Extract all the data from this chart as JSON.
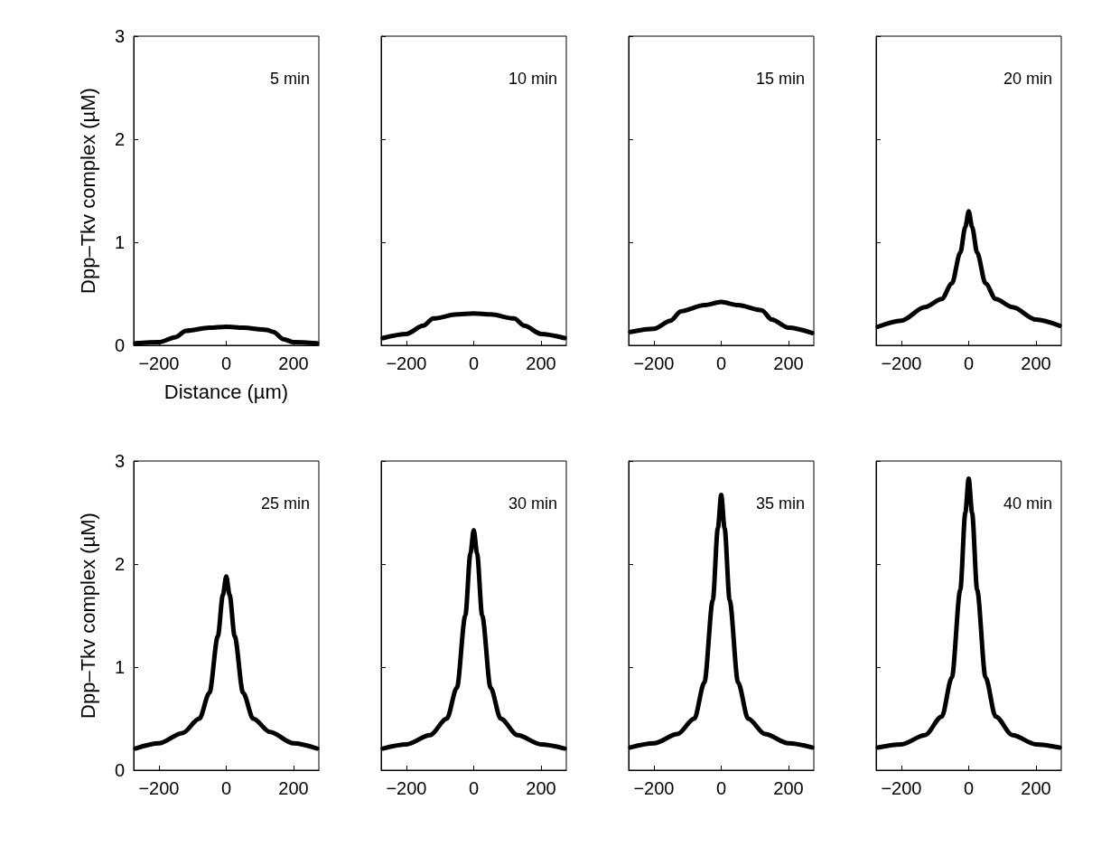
{
  "chart_data": [
    {
      "type": "line",
      "xlabel": "Distance (µm)",
      "ylabel": "Dpp–Tkv complex (µM)",
      "annotations": [
        "5 min"
      ],
      "x": [
        -270,
        -200,
        -150,
        -120,
        -50,
        0,
        50,
        120,
        140,
        170,
        200,
        270
      ],
      "series": [
        {
          "color": "#000000",
          "values": [
            0.02,
            0.03,
            0.08,
            0.14,
            0.17,
            0.18,
            0.17,
            0.15,
            0.13,
            0.06,
            0.03,
            0.02
          ]
        }
      ],
      "xlim": [
        -275,
        275
      ],
      "ylim": [
        0,
        3
      ],
      "xticks": [
        -200,
        0,
        200
      ],
      "yticks": [
        0,
        1,
        2,
        3
      ]
    },
    {
      "type": "line",
      "annotations": [
        "10 min"
      ],
      "x": [
        -270,
        -200,
        -150,
        -120,
        -50,
        0,
        50,
        120,
        150,
        200,
        270
      ],
      "series": [
        {
          "color": "#000000",
          "values": [
            0.07,
            0.11,
            0.19,
            0.26,
            0.3,
            0.31,
            0.3,
            0.26,
            0.19,
            0.11,
            0.07
          ]
        }
      ],
      "xlim": [
        -275,
        275
      ],
      "ylim": [
        0,
        3
      ],
      "xticks": [
        -200,
        0,
        200
      ],
      "yticks": [
        0,
        1,
        2,
        3
      ],
      "tick_labels": "x"
    },
    {
      "type": "line",
      "annotations": [
        "15 min"
      ],
      "x": [
        -270,
        -200,
        -150,
        -120,
        -50,
        0,
        50,
        120,
        150,
        200,
        270
      ],
      "series": [
        {
          "color": "#000000",
          "values": [
            0.13,
            0.16,
            0.24,
            0.33,
            0.39,
            0.42,
            0.39,
            0.34,
            0.25,
            0.17,
            0.12
          ]
        }
      ],
      "xlim": [
        -275,
        275
      ],
      "ylim": [
        0,
        3
      ],
      "xticks": [
        -200,
        0,
        200
      ],
      "yticks": [
        0,
        1,
        2,
        3
      ],
      "tick_labels": "x"
    },
    {
      "type": "line",
      "annotations": [
        "20 min"
      ],
      "x": [
        -270,
        -200,
        -130,
        -80,
        -50,
        -25,
        -10,
        0,
        10,
        25,
        50,
        80,
        130,
        200,
        270
      ],
      "series": [
        {
          "color": "#000000",
          "values": [
            0.18,
            0.24,
            0.37,
            0.45,
            0.6,
            0.9,
            1.15,
            1.3,
            1.15,
            0.9,
            0.6,
            0.45,
            0.37,
            0.25,
            0.19
          ]
        }
      ],
      "xlim": [
        -275,
        275
      ],
      "ylim": [
        0,
        3
      ],
      "xticks": [
        -200,
        0,
        200
      ],
      "yticks": [
        0,
        1,
        2,
        3
      ],
      "tick_labels": "x"
    },
    {
      "type": "line",
      "ylabel": "Dpp–Tkv complex (µM)",
      "annotations": [
        "25 min"
      ],
      "x": [
        -270,
        -200,
        -130,
        -80,
        -50,
        -25,
        -10,
        0,
        10,
        25,
        50,
        80,
        130,
        200,
        270
      ],
      "series": [
        {
          "color": "#000000",
          "values": [
            0.21,
            0.26,
            0.36,
            0.5,
            0.75,
            1.3,
            1.7,
            1.88,
            1.7,
            1.3,
            0.75,
            0.5,
            0.37,
            0.26,
            0.21
          ]
        }
      ],
      "xlim": [
        -275,
        275
      ],
      "ylim": [
        0,
        3
      ],
      "xticks": [
        -200,
        0,
        200
      ],
      "yticks": [
        0,
        1,
        2,
        3
      ]
    },
    {
      "type": "line",
      "annotations": [
        "30 min"
      ],
      "x": [
        -270,
        -200,
        -130,
        -80,
        -50,
        -25,
        -10,
        0,
        10,
        25,
        50,
        80,
        130,
        200,
        270
      ],
      "series": [
        {
          "color": "#000000",
          "values": [
            0.21,
            0.25,
            0.34,
            0.5,
            0.8,
            1.5,
            2.1,
            2.33,
            2.1,
            1.5,
            0.8,
            0.5,
            0.34,
            0.25,
            0.21
          ]
        }
      ],
      "xlim": [
        -275,
        275
      ],
      "ylim": [
        0,
        3
      ],
      "xticks": [
        -200,
        0,
        200
      ],
      "yticks": [
        0,
        1,
        2,
        3
      ],
      "tick_labels": "x"
    },
    {
      "type": "line",
      "annotations": [
        "35 min"
      ],
      "x": [
        -270,
        -200,
        -130,
        -80,
        -50,
        -25,
        -10,
        0,
        10,
        25,
        50,
        80,
        130,
        200,
        270
      ],
      "series": [
        {
          "color": "#000000",
          "values": [
            0.22,
            0.26,
            0.35,
            0.5,
            0.85,
            1.65,
            2.35,
            2.67,
            2.35,
            1.65,
            0.85,
            0.5,
            0.35,
            0.26,
            0.22
          ]
        }
      ],
      "xlim": [
        -275,
        275
      ],
      "ylim": [
        0,
        3
      ],
      "xticks": [
        -200,
        0,
        200
      ],
      "yticks": [
        0,
        1,
        2,
        3
      ],
      "tick_labels": "x"
    },
    {
      "type": "line",
      "annotations": [
        "40 min"
      ],
      "x": [
        -270,
        -200,
        -130,
        -80,
        -50,
        -25,
        -10,
        0,
        10,
        25,
        50,
        80,
        130,
        200,
        270
      ],
      "series": [
        {
          "color": "#000000",
          "values": [
            0.22,
            0.25,
            0.34,
            0.52,
            0.9,
            1.75,
            2.5,
            2.83,
            2.5,
            1.75,
            0.9,
            0.52,
            0.34,
            0.25,
            0.22
          ]
        }
      ],
      "xlim": [
        -275,
        275
      ],
      "ylim": [
        0,
        3
      ],
      "xticks": [
        -200,
        0,
        200
      ],
      "yticks": [
        0,
        1,
        2,
        3
      ],
      "tick_labels": "x"
    }
  ]
}
